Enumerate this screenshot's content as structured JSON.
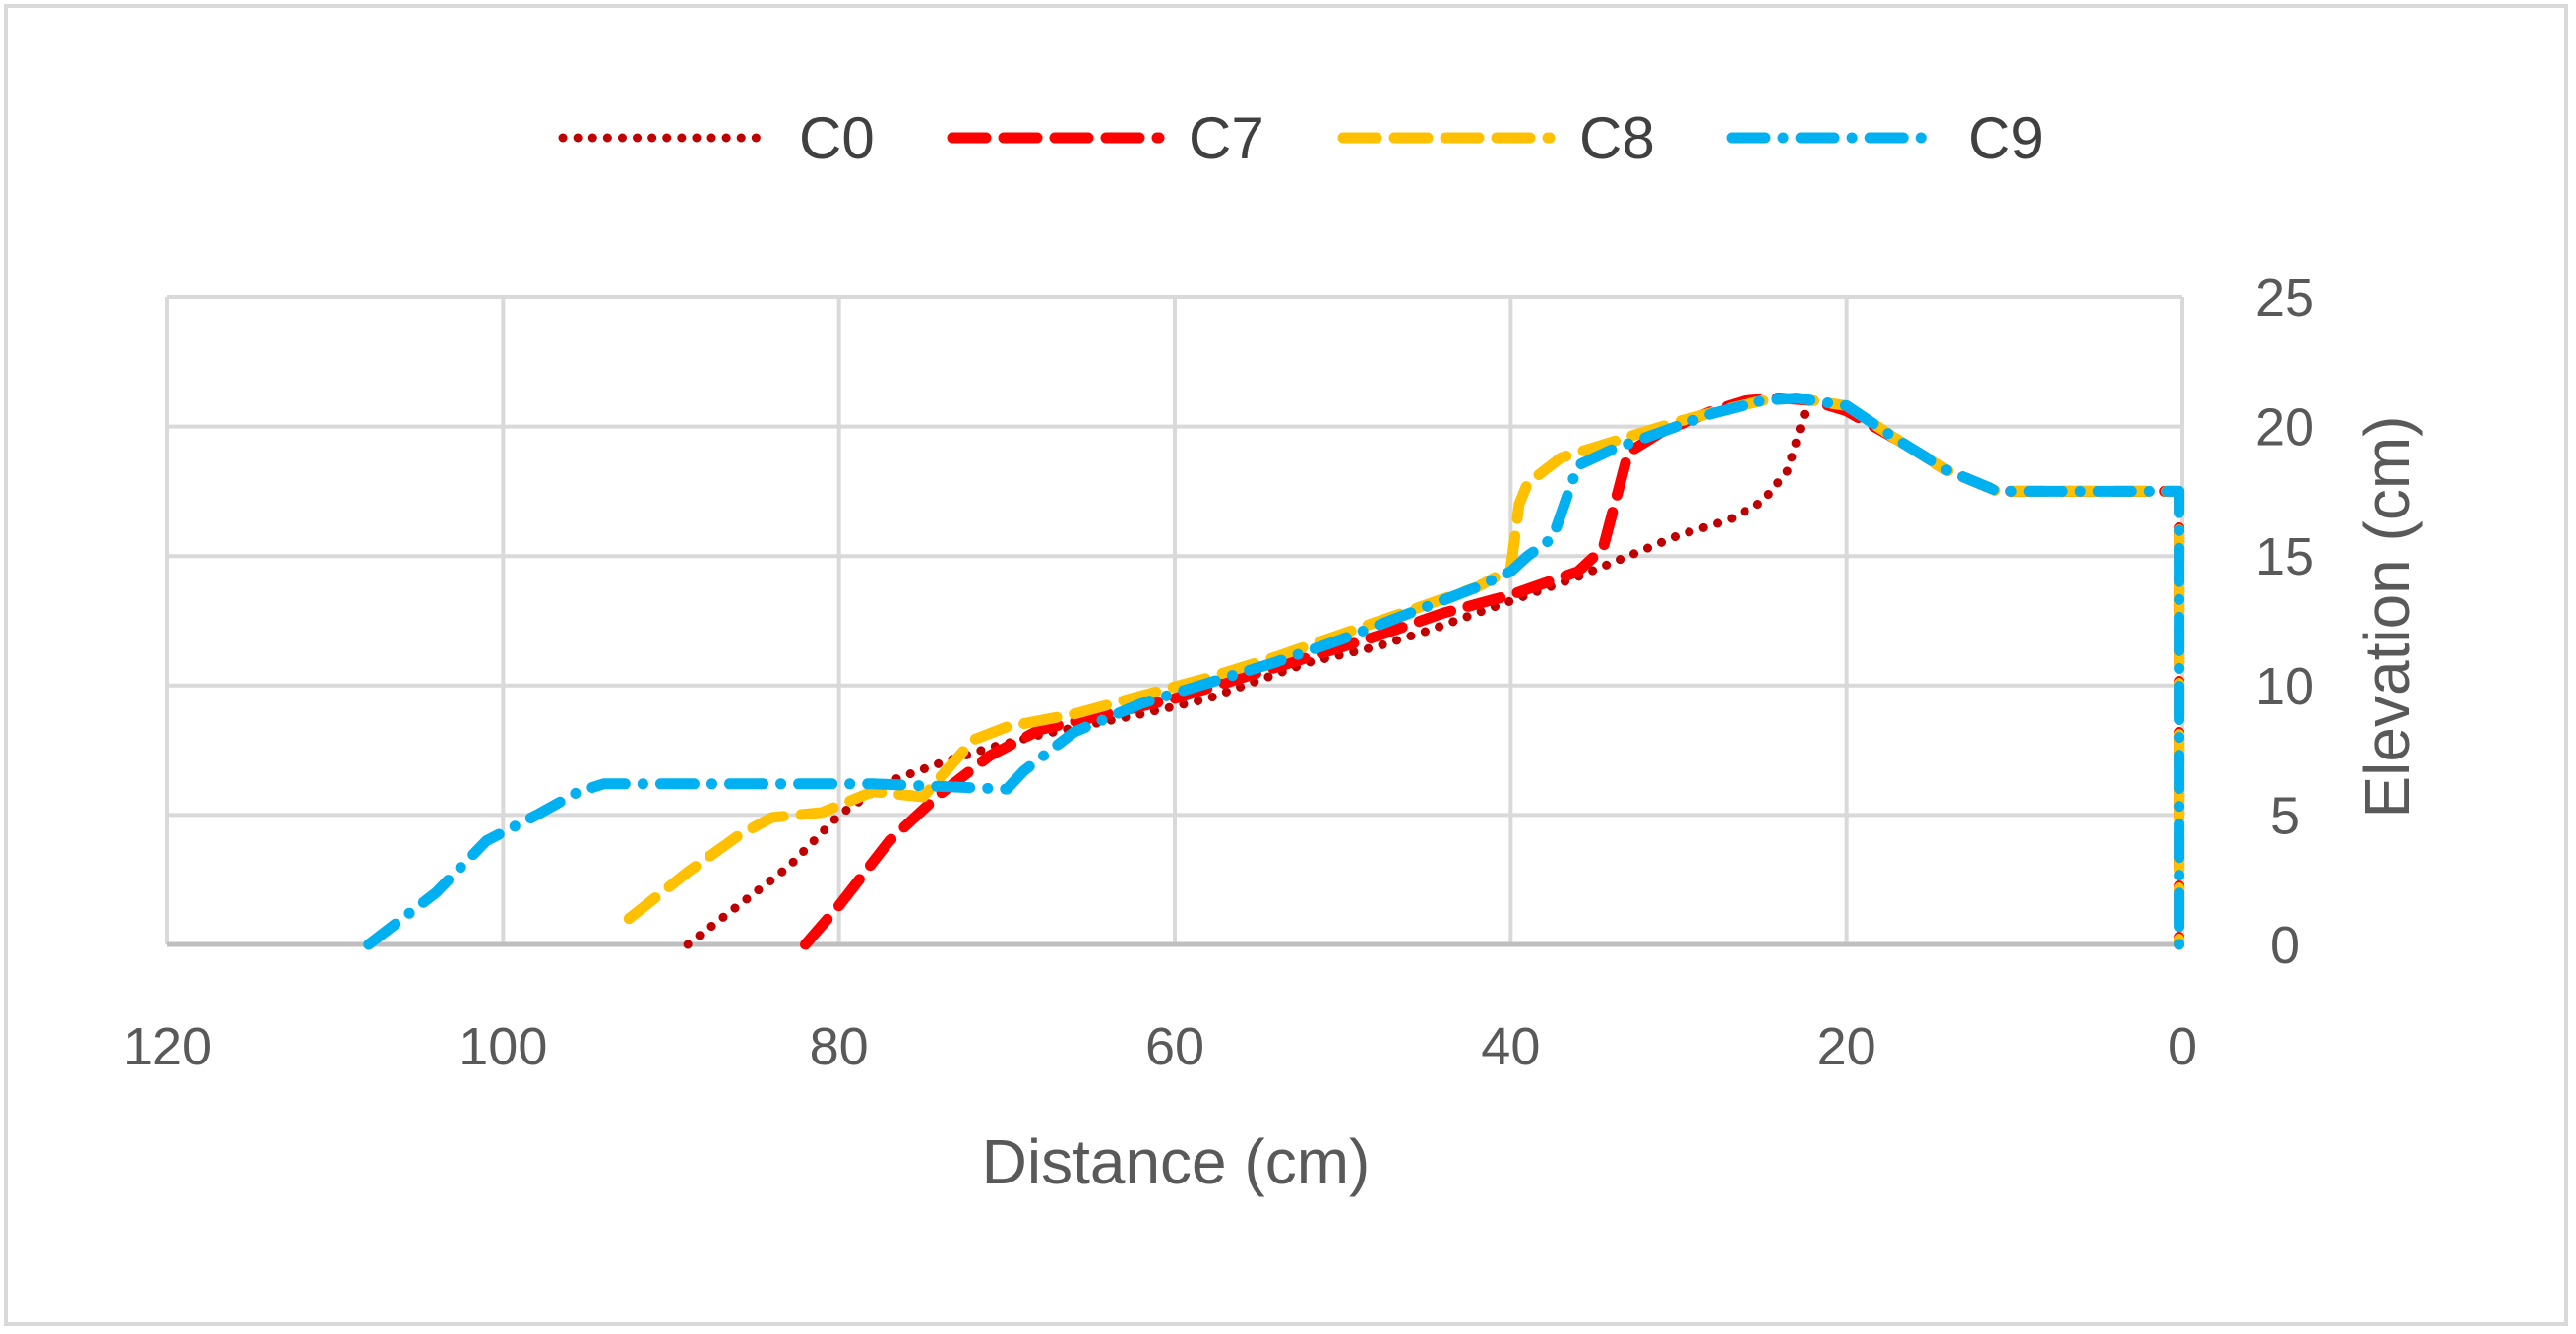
{
  "chart_data": {
    "type": "line",
    "title": "",
    "xlabel": "Distance  (cm)",
    "ylabel": "Elevation  (cm)",
    "xlim": [
      120,
      0
    ],
    "ylim": [
      0,
      25
    ],
    "x_ticks": [
      "120",
      "100",
      "80",
      "60",
      "40",
      "20",
      "0"
    ],
    "y_ticks": [
      "0",
      "5",
      "10",
      "15",
      "20",
      "25"
    ],
    "grid": true,
    "legend_position": "top",
    "series": [
      {
        "name": "C0",
        "color": "#c00000",
        "style": "dotted",
        "x": [
          89,
          86,
          83,
          80,
          77,
          74,
          71,
          68,
          65,
          62,
          58,
          55,
          52,
          48,
          45,
          42,
          39,
          36,
          33,
          30,
          27,
          25,
          23.5,
          22.5
        ],
        "y": [
          0,
          1.5,
          3,
          5,
          6.3,
          7,
          7.6,
          8.1,
          8.5,
          8.9,
          9.5,
          10.2,
          10.9,
          11.5,
          12.1,
          12.8,
          13.5,
          14.2,
          15,
          15.8,
          16.4,
          17.1,
          18.3,
          20.5
        ]
      },
      {
        "name": "C7",
        "color": "#ff0000",
        "style": "dashed",
        "x": [
          82,
          80,
          77,
          74,
          71,
          68,
          64,
          60,
          56,
          52,
          48,
          44,
          40,
          36,
          34.5,
          33,
          31,
          28,
          26,
          24,
          22,
          20,
          17,
          14,
          11,
          8,
          5,
          2,
          0.2,
          0.2
        ],
        "y": [
          0,
          1.5,
          4,
          5.8,
          7.3,
          8.3,
          8.9,
          9.5,
          10.3,
          11.1,
          11.9,
          12.8,
          13.5,
          14.4,
          15.3,
          19,
          19.8,
          20.6,
          21,
          21.1,
          21,
          20.6,
          19.5,
          18.3,
          17.5,
          17.5,
          17.5,
          17.5,
          17.5,
          0
        ]
      },
      {
        "name": "C8",
        "color": "#ffc000",
        "style": "dashed",
        "x": [
          92.5,
          89,
          86,
          84,
          81,
          78,
          75,
          72,
          70,
          66,
          62,
          58,
          54,
          50,
          46,
          42,
          40,
          39.5,
          39,
          37,
          35,
          33,
          30,
          27,
          25,
          23,
          20,
          17,
          14,
          11,
          8,
          5,
          2,
          0.2,
          0.2
        ],
        "y": [
          1,
          2.8,
          4.2,
          4.9,
          5.1,
          5.9,
          5.7,
          7.9,
          8.4,
          8.9,
          9.6,
          10.3,
          11.1,
          12,
          12.9,
          13.8,
          14.5,
          17,
          17.8,
          18.8,
          19.2,
          19.6,
          20.2,
          20.7,
          21,
          21.1,
          20.8,
          19.5,
          18.3,
          17.5,
          17.5,
          17.5,
          17.5,
          17.5,
          0
        ]
      },
      {
        "name": "C9",
        "color": "#00b0f0",
        "style": "dashdot",
        "x": [
          108,
          104,
          101,
          98,
          95.5,
          94,
          90,
          86,
          82,
          78,
          74,
          70,
          69,
          66,
          62,
          58,
          54,
          50,
          46,
          42,
          40,
          39,
          37.5,
          36,
          34,
          31,
          28,
          25,
          23,
          20,
          17,
          14,
          11,
          8,
          5,
          2,
          0.2,
          0.2
        ],
        "y": [
          0,
          2,
          4,
          5,
          5.9,
          6.2,
          6.2,
          6.2,
          6.2,
          6.2,
          6.1,
          6,
          6.7,
          8.2,
          9.3,
          10.1,
          10.9,
          11.8,
          12.8,
          13.8,
          14.4,
          15,
          15.7,
          18.5,
          19.1,
          19.8,
          20.5,
          21,
          21.1,
          20.8,
          19.5,
          18.3,
          17.5,
          17.5,
          17.5,
          17.5,
          17.5,
          0
        ]
      }
    ]
  }
}
